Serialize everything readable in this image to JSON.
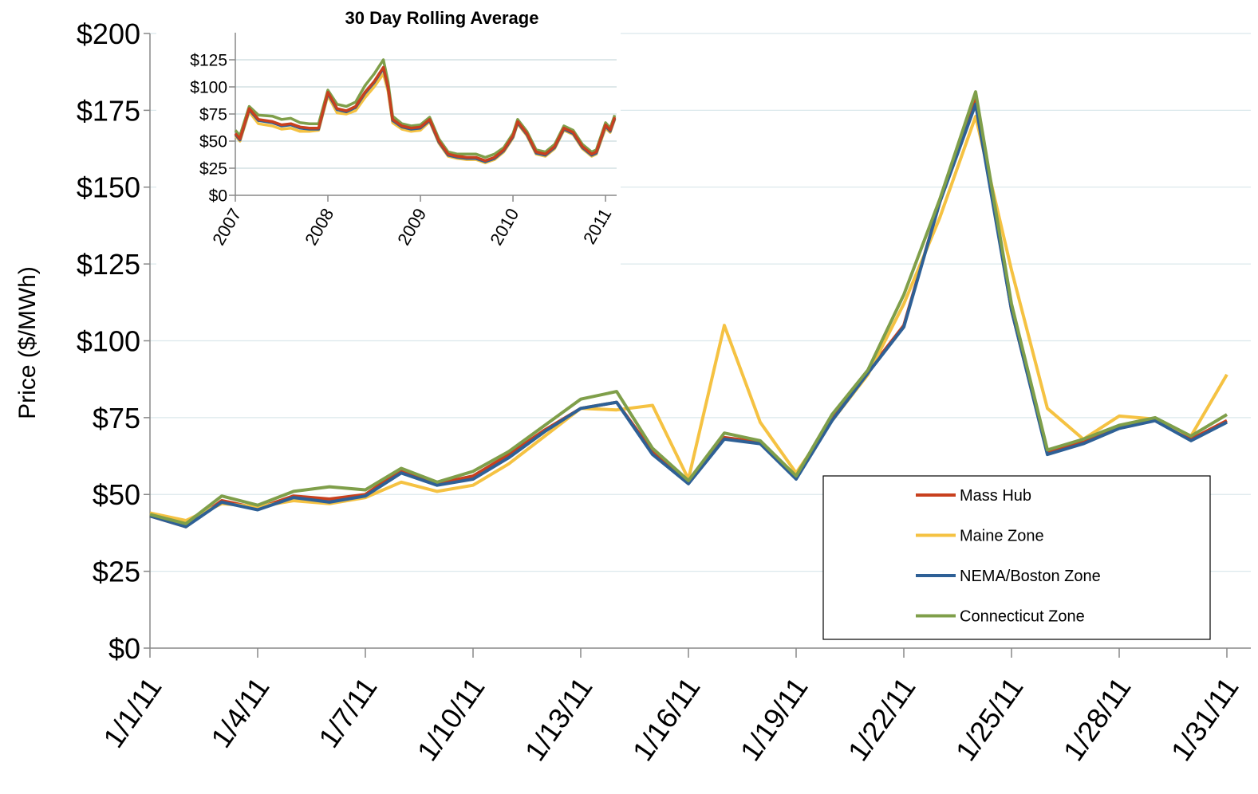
{
  "chart_data": [
    {
      "type": "line",
      "ylabel": "Price ($/MWh)",
      "categories": [
        "1/1/11",
        null,
        null,
        "1/4/11",
        null,
        null,
        "1/7/11",
        null,
        null,
        "1/10/11",
        null,
        null,
        "1/13/11",
        null,
        null,
        "1/16/11",
        null,
        null,
        "1/19/11",
        null,
        null,
        "1/22/11",
        null,
        null,
        "1/25/11",
        null,
        null,
        "1/28/11",
        null,
        null,
        "1/31/11"
      ],
      "ylim": [
        0,
        200
      ],
      "yticks": [
        {
          "value": 0,
          "label": "$0"
        },
        {
          "value": 25,
          "label": "$25"
        },
        {
          "value": 50,
          "label": "$50"
        },
        {
          "value": 75,
          "label": "$75"
        },
        {
          "value": 100,
          "label": "$100"
        },
        {
          "value": 125,
          "label": "$125"
        },
        {
          "value": 150,
          "label": "$150"
        },
        {
          "value": 175,
          "label": "$175"
        },
        {
          "value": 200,
          "label": "$200"
        }
      ],
      "grid": true,
      "legend": "lower right",
      "series": [
        {
          "name": "Mass Hub",
          "color": "#c8401e",
          "values": [
            43,
            39.5,
            48,
            45.5,
            49.5,
            48.5,
            50,
            58,
            53.5,
            56,
            63,
            71,
            78,
            80,
            64,
            54,
            68.5,
            67,
            55.5,
            75,
            90,
            105,
            145,
            179,
            110,
            63.5,
            67,
            72,
            74.5,
            68,
            74
          ]
        },
        {
          "name": "Maine Zone",
          "color": "#f5c242",
          "values": [
            44,
            41.5,
            47,
            46,
            48,
            47,
            49,
            54,
            51,
            53,
            60,
            69,
            78,
            77.5,
            79,
            55,
            105,
            73.5,
            57,
            74,
            89,
            112,
            140,
            173,
            123,
            78,
            68,
            75.5,
            74.5,
            69,
            89
          ]
        },
        {
          "name": "NEMA/Boston Zone",
          "color": "#2e6096",
          "values": [
            43,
            39.5,
            47.5,
            45,
            49,
            47.5,
            49.5,
            57,
            53,
            55,
            62,
            70.5,
            78,
            80,
            63,
            53.5,
            68,
            66.5,
            55,
            74,
            89.5,
            104.5,
            145,
            177,
            110,
            63,
            66.5,
            71.5,
            74,
            67.5,
            73.5
          ]
        },
        {
          "name": "Connecticut Zone",
          "color": "#7f9f4a",
          "values": [
            43.5,
            40.5,
            49.5,
            46.5,
            51,
            52.5,
            51.5,
            58.5,
            54,
            57.5,
            64,
            72.5,
            81,
            83.5,
            65,
            54.5,
            70,
            67.5,
            56,
            76,
            90.5,
            115,
            146,
            181,
            112,
            64.5,
            68,
            72.5,
            75,
            69,
            76
          ]
        }
      ]
    },
    {
      "type": "line",
      "title": "30 Day Rolling Average",
      "x": [
        2007.0,
        2007.05,
        2007.15,
        2007.25,
        2007.4,
        2007.5,
        2007.6,
        2007.7,
        2007.8,
        2007.9,
        2008.0,
        2008.1,
        2008.2,
        2008.3,
        2008.4,
        2008.5,
        2008.6,
        2008.65,
        2008.7,
        2008.8,
        2008.9,
        2009.0,
        2009.1,
        2009.2,
        2009.3,
        2009.4,
        2009.5,
        2009.6,
        2009.7,
        2009.8,
        2009.9,
        2010.0,
        2010.05,
        2010.15,
        2010.25,
        2010.35,
        2010.45,
        2010.55,
        2010.65,
        2010.75,
        2010.85,
        2010.9,
        2011.0,
        2011.05,
        2011.1
      ],
      "xlim": [
        2007,
        2011.12
      ],
      "xticks": [
        2007,
        2008,
        2009,
        2010,
        2011
      ],
      "ylim": [
        0,
        150
      ],
      "yticks": [
        {
          "value": 0,
          "label": "$0"
        },
        {
          "value": 25,
          "label": "$25"
        },
        {
          "value": 50,
          "label": "$50"
        },
        {
          "value": 75,
          "label": "$75"
        },
        {
          "value": 100,
          "label": "$100"
        },
        {
          "value": 125,
          "label": "$125"
        }
      ],
      "grid": true,
      "series": [
        {
          "color": "#f5c242",
          "values": [
            55,
            50,
            77,
            66,
            64,
            61,
            62,
            59,
            59,
            60,
            92,
            76,
            75,
            78,
            90,
            100,
            112,
            96,
            67,
            61,
            59,
            60,
            68,
            48,
            36,
            34,
            33,
            33,
            30,
            33,
            40,
            53,
            66,
            55,
            38,
            36,
            43,
            60,
            56,
            43,
            36,
            38,
            62,
            58,
            70
          ]
        },
        {
          "color": "#7f9f4a",
          "values": [
            60,
            55,
            82,
            74,
            73,
            70,
            71,
            67,
            66,
            66,
            97,
            84,
            82,
            86,
            101,
            112,
            125,
            105,
            73,
            66,
            64,
            65,
            72,
            52,
            40,
            38,
            38,
            38,
            35,
            38,
            44,
            57,
            70,
            59,
            42,
            40,
            47,
            64,
            60,
            47,
            40,
            42,
            67,
            62,
            74
          ]
        },
        {
          "color": "#2e6096",
          "values": [
            56,
            51,
            79,
            69,
            67,
            64,
            65,
            62,
            61,
            61,
            94,
            79,
            77,
            81,
            94,
            104,
            117,
            99,
            69,
            63,
            61,
            62,
            69,
            49,
            37,
            35,
            34,
            34,
            31,
            34,
            41,
            54,
            67,
            56,
            39,
            37,
            44,
            61,
            57,
            44,
            37,
            39,
            64,
            59,
            71
          ]
        },
        {
          "color": "#c8401e",
          "values": [
            57,
            52,
            80,
            70,
            68,
            65,
            66,
            63,
            62,
            62,
            95,
            80,
            78,
            82,
            95,
            105,
            118,
            100,
            70,
            64,
            62,
            63,
            70,
            50,
            38,
            36,
            35,
            35,
            32,
            35,
            42,
            55,
            68,
            57,
            40,
            38,
            45,
            62,
            58,
            45,
            38,
            40,
            65,
            60,
            72
          ]
        }
      ]
    }
  ]
}
